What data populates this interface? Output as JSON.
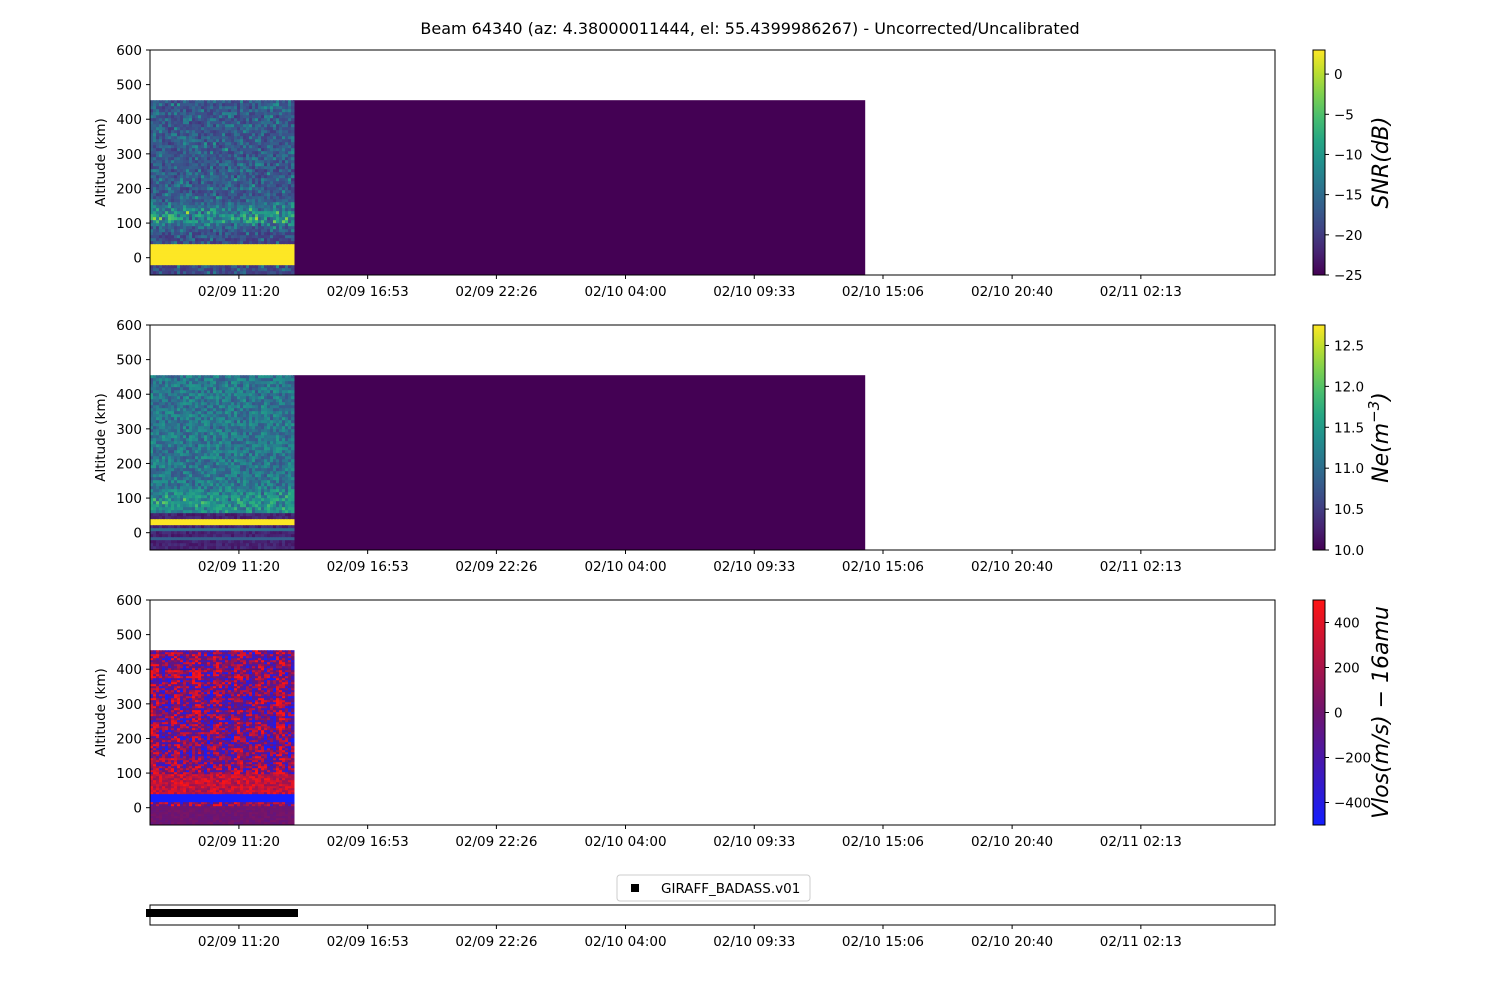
{
  "title": "Beam 64340 (az: 4.38000011444, el: 55.4399986267) - Uncorrected/Uncalibrated",
  "x_tick_labels": [
    "02/09 11:20",
    "02/09 16:53",
    "02/09 22:26",
    "02/10 04:00",
    "02/10 09:33",
    "02/10 15:06",
    "02/10 20:40",
    "02/11 02:13"
  ],
  "legend": {
    "label": "GIRAFF_BADASS.v01",
    "marker": "square-marker-icon"
  },
  "chart_data": [
    {
      "type": "heatmap",
      "ylabel": "Altitude (km)",
      "ylim": [
        -50,
        600
      ],
      "y_ticks": [
        0,
        100,
        200,
        300,
        400,
        500,
        600
      ],
      "x_ticks": [
        "02/09 11:20",
        "02/09 16:53",
        "02/09 22:26",
        "02/10 04:00",
        "02/10 09:33",
        "02/10 15:06",
        "02/10 20:40",
        "02/11 02:13"
      ],
      "x_range": [
        "02/09 07:30",
        "02/11 08:00"
      ],
      "data_extent": {
        "x_start": "02/09 07:30",
        "x_active_end": "02/09 13:40",
        "x_fill_end": "02/10 14:20",
        "y_min": -50,
        "y_max": 455
      },
      "colormap": "viridis",
      "colorbar": {
        "label": "SNR(dB)",
        "range": [
          -25,
          3
        ],
        "ticks": [
          0,
          -5,
          -10,
          -15,
          -20,
          -25
        ],
        "tick_labels": [
          "0",
          "−5",
          "−10",
          "−15",
          "−20",
          "−25"
        ]
      },
      "features": [
        {
          "altitude_km": 120,
          "description": "enhanced layer"
        },
        {
          "altitude_range_km": [
            20,
            45
          ],
          "value": "saturated"
        },
        {
          "altitude_range_km": [
            -20,
            15
          ],
          "value": "saturated"
        }
      ]
    },
    {
      "type": "heatmap",
      "ylabel": "Altitude (km)",
      "ylim": [
        -50,
        600
      ],
      "y_ticks": [
        0,
        100,
        200,
        300,
        400,
        500,
        600
      ],
      "x_ticks": [
        "02/09 11:20",
        "02/09 16:53",
        "02/09 22:26",
        "02/10 04:00",
        "02/10 09:33",
        "02/10 15:06",
        "02/10 20:40",
        "02/11 02:13"
      ],
      "x_range": [
        "02/09 07:30",
        "02/11 08:00"
      ],
      "data_extent": {
        "x_start": "02/09 07:30",
        "x_active_end": "02/09 13:40",
        "x_fill_end": "02/10 14:20",
        "y_min": -50,
        "y_max": 455
      },
      "colormap": "viridis",
      "colorbar": {
        "label": "Ne(m^-3)",
        "range": [
          10.0,
          12.75
        ],
        "ticks": [
          12.5,
          12.0,
          11.5,
          11.0,
          10.5,
          10.0
        ],
        "tick_labels": [
          "12.5",
          "12.0",
          "11.5",
          "11.0",
          "10.5",
          "10.0"
        ]
      },
      "features": [
        {
          "altitude_km": 90,
          "description": "enhanced layer"
        },
        {
          "altitude_range_km": [
            30,
            42
          ],
          "value": "saturated"
        }
      ]
    },
    {
      "type": "heatmap",
      "ylabel": "Altitude (km)",
      "ylim": [
        -50,
        600
      ],
      "y_ticks": [
        0,
        100,
        200,
        300,
        400,
        500,
        600
      ],
      "x_ticks": [
        "02/09 11:20",
        "02/09 16:53",
        "02/09 22:26",
        "02/10 04:00",
        "02/10 09:33",
        "02/10 15:06",
        "02/10 20:40",
        "02/11 02:13"
      ],
      "x_range": [
        "02/09 07:30",
        "02/11 08:00"
      ],
      "data_extent": {
        "x_start": "02/09 07:30",
        "x_active_end": "02/09 13:40",
        "y_min": -50,
        "y_max": 455
      },
      "colormap": "bwr",
      "colorbar": {
        "label": "Vlos(m/s) − 16amu",
        "range": [
          -500,
          500
        ],
        "ticks": [
          400,
          200,
          0,
          -200,
          -400
        ],
        "tick_labels": [
          "400",
          "200",
          "0",
          "−200",
          "−400"
        ]
      },
      "features": [
        {
          "altitude_range_km": [
            20,
            40
          ],
          "value": -500
        }
      ]
    },
    {
      "type": "scatter",
      "series": [
        {
          "name": "GIRAFF_BADASS.v01",
          "x_range": [
            "02/09 07:30",
            "02/09 13:45"
          ],
          "marker": "square",
          "color": "#000000"
        }
      ],
      "x_ticks": [
        "02/09 11:20",
        "02/09 16:53",
        "02/09 22:26",
        "02/10 04:00",
        "02/10 09:33",
        "02/10 15:06",
        "02/10 20:40",
        "02/11 02:13"
      ],
      "x_range": [
        "02/09 07:30",
        "02/11 08:00"
      ],
      "legend": "above"
    }
  ]
}
